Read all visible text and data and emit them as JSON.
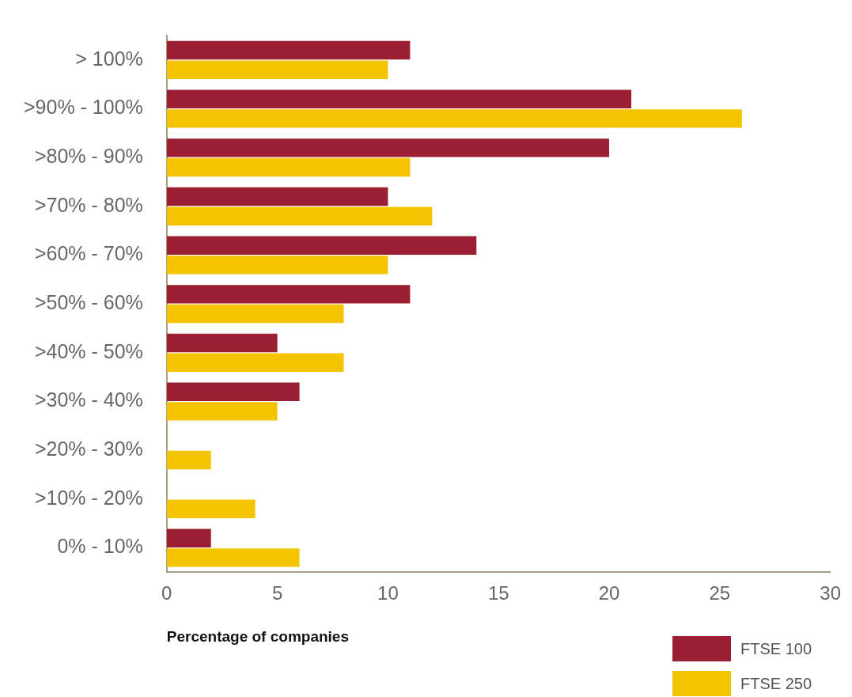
{
  "chart_data": {
    "type": "bar",
    "orientation": "horizontal",
    "xlabel": "Percentage of companies",
    "categories": [
      "> 100%",
      ">90% - 100%",
      ">80% - 90%",
      ">70% - 80%",
      ">60% - 70%",
      ">50% - 60%",
      ">40% - 50%",
      ">30% - 40%",
      ">20% - 30%",
      ">10% - 20%",
      "0% - 10%"
    ],
    "series": [
      {
        "name": "FTSE 100",
        "color": "#9b1f32",
        "values": [
          11,
          21,
          20,
          10,
          14,
          11,
          5,
          6,
          0,
          0,
          2
        ]
      },
      {
        "name": "FTSE 250",
        "color": "#f5c400",
        "values": [
          10,
          26,
          11,
          12,
          10,
          8,
          8,
          5,
          2,
          4,
          6
        ]
      }
    ],
    "xlim": [
      0,
      30
    ],
    "xticks": [
      0,
      5,
      10,
      15,
      20,
      25,
      30
    ],
    "grid": false,
    "legend": "bottom right"
  }
}
